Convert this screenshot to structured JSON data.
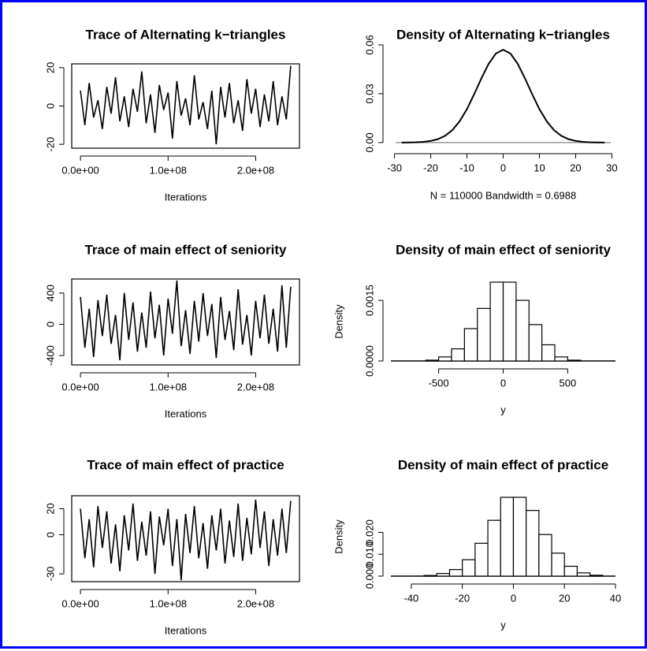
{
  "chart_data": [
    {
      "type": "line",
      "title": "Trace of Alternating k−triangles",
      "x_label": "Iterations",
      "frame": true,
      "color": "#000000",
      "x": [
        0,
        5000000,
        10000000,
        15000000,
        20000000,
        25000000,
        30000000,
        35000000,
        40000000,
        45000000,
        50000000,
        55000000,
        60000000,
        65000000,
        70000000,
        75000000,
        80000000,
        85000000,
        90000000,
        95000000,
        100000000,
        105000000,
        110000000,
        115000000,
        120000000,
        125000000,
        130000000,
        135000000,
        140000000,
        145000000,
        150000000,
        155000000,
        160000000,
        165000000,
        170000000,
        175000000,
        180000000,
        185000000,
        190000000,
        195000000,
        200000000,
        205000000,
        210000000,
        215000000,
        220000000,
        225000000,
        230000000,
        235000000,
        240000000
      ],
      "values": [
        8,
        -10,
        12,
        -6,
        3,
        -12,
        10,
        -4,
        15,
        -8,
        5,
        -11,
        9,
        -3,
        18,
        -9,
        6,
        -14,
        11,
        -2,
        7,
        -17,
        13,
        -5,
        4,
        -10,
        16,
        -7,
        2,
        -12,
        8,
        -20,
        10,
        -6,
        12,
        -9,
        3,
        -13,
        14,
        -4,
        9,
        -11,
        6,
        -8,
        13,
        -10,
        5,
        -7,
        21
      ],
      "xlim": [
        -10000000,
        250000000
      ],
      "xticks": [
        {
          "value": 0,
          "label": "0.0e+00"
        },
        {
          "value": 100000000,
          "label": "1.0e+08"
        },
        {
          "value": 200000000,
          "label": "2.0e+08"
        }
      ],
      "ylim": [
        -22,
        22
      ],
      "yticks": [
        -20,
        0,
        20
      ]
    },
    {
      "type": "line",
      "title": "Density of Alternating k−triangles",
      "subtitle": "N = 110000   Bandwidth = 0.6988",
      "color": "#000000",
      "x": [
        -28,
        -26,
        -24,
        -22,
        -20,
        -18,
        -16,
        -14,
        -12,
        -10,
        -8,
        -6,
        -4,
        -2,
        0,
        2,
        4,
        6,
        8,
        10,
        12,
        14,
        16,
        18,
        20,
        22,
        24,
        26,
        28
      ],
      "values": [
        0,
        0.0001,
        0.0002,
        0.0004,
        0.001,
        0.0021,
        0.0042,
        0.0077,
        0.0131,
        0.0205,
        0.0297,
        0.0395,
        0.0484,
        0.0547,
        0.057,
        0.0547,
        0.0484,
        0.0395,
        0.0297,
        0.0205,
        0.0131,
        0.0077,
        0.0042,
        0.0021,
        0.001,
        0.0004,
        0.0002,
        0.0001,
        0
      ],
      "xlim": [
        -31,
        31
      ],
      "xticks": [
        -30,
        -20,
        -10,
        0,
        10,
        20,
        30
      ],
      "ylim": [
        -0.002,
        0.059
      ],
      "yticks": [
        {
          "value": 0,
          "label": "0.00"
        },
        {
          "value": 0.03,
          "label": "0.03"
        },
        {
          "value": 0.06,
          "label": "0.06"
        }
      ]
    },
    {
      "type": "line",
      "title": "Trace of main effect of seniority",
      "x_label": "Iterations",
      "frame": true,
      "color": "#000000",
      "x": [
        0,
        5000000,
        10000000,
        15000000,
        20000000,
        25000000,
        30000000,
        35000000,
        40000000,
        45000000,
        50000000,
        55000000,
        60000000,
        65000000,
        70000000,
        75000000,
        80000000,
        85000000,
        90000000,
        95000000,
        100000000,
        105000000,
        110000000,
        115000000,
        120000000,
        125000000,
        130000000,
        135000000,
        140000000,
        145000000,
        150000000,
        155000000,
        160000000,
        165000000,
        170000000,
        175000000,
        180000000,
        185000000,
        190000000,
        195000000,
        200000000,
        205000000,
        210000000,
        215000000,
        220000000,
        225000000,
        230000000,
        235000000,
        240000000
      ],
      "values": [
        350,
        -300,
        200,
        -420,
        310,
        -150,
        380,
        -250,
        120,
        -460,
        400,
        -200,
        280,
        -350,
        150,
        -300,
        420,
        -180,
        250,
        -400,
        330,
        -120,
        560,
        -280,
        180,
        -380,
        300,
        -220,
        400,
        -150,
        260,
        -430,
        350,
        -200,
        170,
        -330,
        450,
        -260,
        120,
        -400,
        300,
        -180,
        380,
        -250,
        200,
        -350,
        500,
        -300,
        480
      ],
      "xlim": [
        -10000000,
        250000000
      ],
      "xticks": [
        {
          "value": 0,
          "label": "0.0e+00"
        },
        {
          "value": 100000000,
          "label": "1.0e+08"
        },
        {
          "value": 200000000,
          "label": "2.0e+08"
        }
      ],
      "ylim": [
        -520,
        580
      ],
      "yticks": [
        -400,
        0,
        400
      ]
    },
    {
      "type": "histogram",
      "title": "Density of main effect of seniority",
      "x_label": "y",
      "y_label": "Density",
      "color": "#ffffff",
      "bins": [
        -600,
        -500,
        -400,
        -300,
        -200,
        -100,
        0,
        100,
        200,
        300,
        400,
        500,
        600
      ],
      "values": [
        2e-05,
        0.0001,
        0.0003,
        0.0008,
        0.0013,
        0.00195,
        0.00195,
        0.0015,
        0.0009,
        0.0004,
        0.0001,
        2e-05
      ],
      "xlim": [
        -870,
        870
      ],
      "xticks": [
        -500,
        0,
        500
      ],
      "ylim": [
        0,
        0.00195
      ],
      "yticks": [
        {
          "value": 0,
          "label": "0.0000"
        },
        {
          "value": 0.0015,
          "label": "0.0015"
        }
      ]
    },
    {
      "type": "line",
      "title": "Trace of main effect of practice",
      "x_label": "Iterations",
      "frame": true,
      "color": "#000000",
      "x": [
        0,
        5000000,
        10000000,
        15000000,
        20000000,
        25000000,
        30000000,
        35000000,
        40000000,
        45000000,
        50000000,
        55000000,
        60000000,
        65000000,
        70000000,
        75000000,
        80000000,
        85000000,
        90000000,
        95000000,
        100000000,
        105000000,
        110000000,
        115000000,
        120000000,
        125000000,
        130000000,
        135000000,
        140000000,
        145000000,
        150000000,
        155000000,
        160000000,
        165000000,
        170000000,
        175000000,
        180000000,
        185000000,
        190000000,
        195000000,
        200000000,
        205000000,
        210000000,
        215000000,
        220000000,
        225000000,
        230000000,
        235000000,
        240000000
      ],
      "values": [
        20,
        -18,
        12,
        -25,
        22,
        -10,
        18,
        -22,
        8,
        -28,
        15,
        -12,
        24,
        -20,
        10,
        -16,
        18,
        -30,
        14,
        -8,
        20,
        -24,
        12,
        -35,
        16,
        -14,
        22,
        -18,
        9,
        -26,
        15,
        -12,
        20,
        -22,
        11,
        -17,
        24,
        -20,
        13,
        -15,
        27,
        -10,
        18,
        -24,
        12,
        -16,
        20,
        -14,
        26
      ],
      "xlim": [
        -10000000,
        250000000
      ],
      "xticks": [
        {
          "value": 0,
          "label": "0.0e+00"
        },
        {
          "value": 100000000,
          "label": "1.0e+08"
        },
        {
          "value": 200000000,
          "label": "2.0e+08"
        }
      ],
      "ylim": [
        -36,
        30
      ],
      "yticks": [
        -30,
        0,
        20
      ]
    },
    {
      "type": "histogram",
      "title": "Density of main effect of practice",
      "x_label": "y",
      "y_label": "Density",
      "color": "#ffffff",
      "bins": [
        -35,
        -30,
        -25,
        -20,
        -15,
        -10,
        -5,
        0,
        5,
        10,
        15,
        20,
        25,
        30,
        35
      ],
      "values": [
        0.0003,
        0.0012,
        0.003,
        0.0075,
        0.015,
        0.0255,
        0.036,
        0.036,
        0.03,
        0.019,
        0.0105,
        0.0045,
        0.0015,
        0.0004
      ],
      "xlim": [
        -48,
        40
      ],
      "xticks": [
        -40,
        -20,
        0,
        20,
        40
      ],
      "ylim": [
        0,
        0.036
      ],
      "yticks": [
        {
          "value": 0,
          "label": "0.000"
        },
        {
          "value": 0.01,
          "label": "0.010"
        },
        {
          "value": 0.02,
          "label": "0.020"
        }
      ]
    }
  ]
}
